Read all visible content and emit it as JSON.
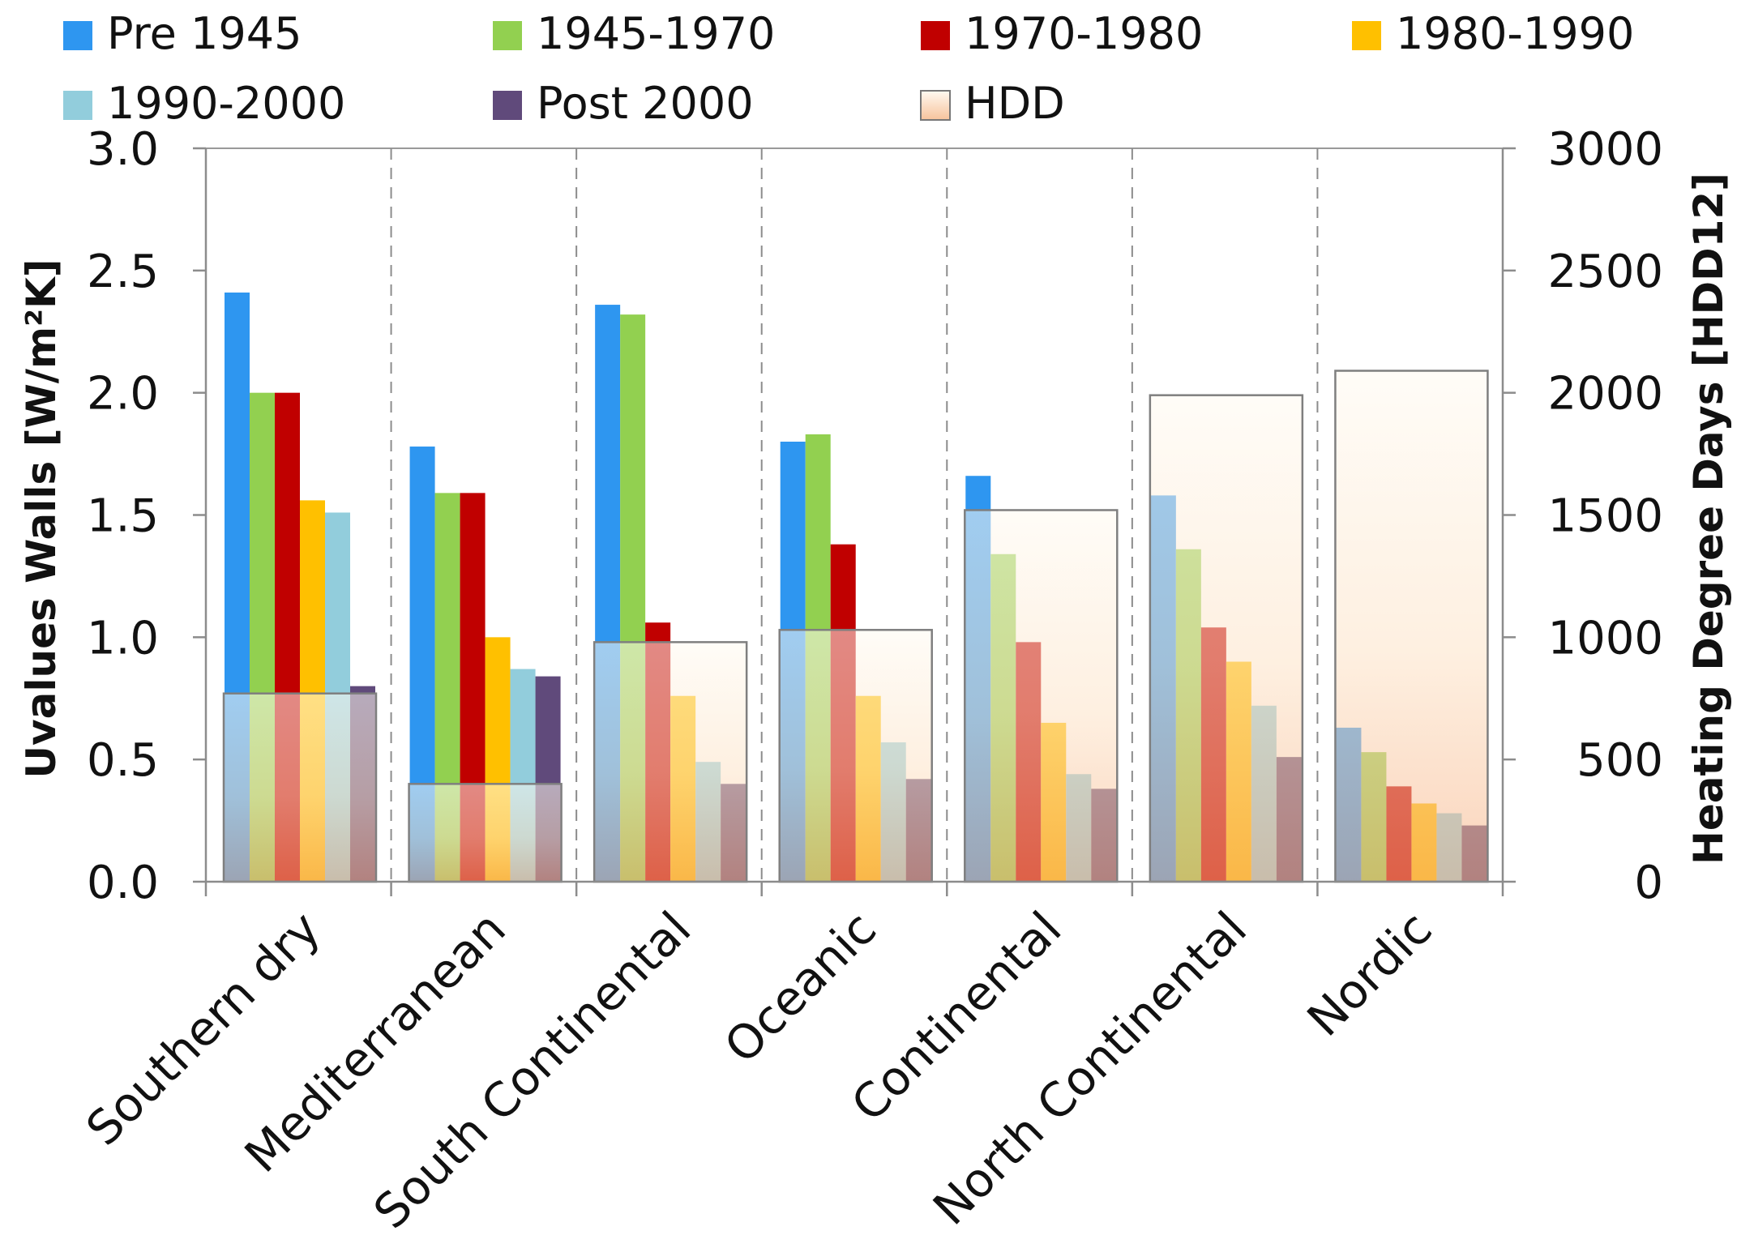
{
  "chart_data": {
    "type": "bar",
    "categories": [
      "Southern dry",
      "Mediterranean",
      "South Continental",
      "Oceanic",
      "Continental",
      "North Continental",
      "Nordic"
    ],
    "series": [
      {
        "name": "Pre 1945",
        "color": "#2e96f0",
        "values": [
          2.41,
          1.78,
          2.36,
          1.8,
          1.66,
          1.58,
          0.63
        ]
      },
      {
        "name": "1945-1970",
        "color": "#92d050",
        "values": [
          2.0,
          1.59,
          2.32,
          1.83,
          1.34,
          1.36,
          0.53
        ]
      },
      {
        "name": "1970-1980",
        "color": "#c00000",
        "values": [
          2.0,
          1.59,
          1.06,
          1.38,
          0.98,
          1.04,
          0.39
        ]
      },
      {
        "name": "1980-1990",
        "color": "#ffc000",
        "values": [
          1.56,
          1.0,
          0.76,
          0.76,
          0.65,
          0.9,
          0.32
        ]
      },
      {
        "name": "1990-2000",
        "color": "#92cddc",
        "values": [
          1.51,
          0.87,
          0.49,
          0.57,
          0.44,
          0.72,
          0.28
        ]
      },
      {
        "name": "Post 2000",
        "color": "#604a7b",
        "values": [
          0.8,
          0.84,
          0.4,
          0.42,
          0.38,
          0.51,
          0.23
        ]
      }
    ],
    "hdd": {
      "name": "HDD",
      "values": [
        770,
        400,
        980,
        1030,
        1520,
        1990,
        2090
      ]
    },
    "legend": [
      "Pre 1945",
      "1945-1970",
      "1970-1980",
      "1980-1990",
      "1990-2000",
      "Post 2000",
      "HDD"
    ],
    "ylabel": "Uvalues Walls [W/m²K]",
    "y2label": "Heating Degree Days [HDD12]",
    "ylim": [
      0,
      3.0
    ],
    "y2lim": [
      0,
      3000
    ],
    "yticks": [
      "0.0",
      "0.5",
      "1.0",
      "1.5",
      "2.0",
      "2.5",
      "3.0"
    ],
    "y2ticks": [
      "0",
      "500",
      "1000",
      "1500",
      "2000",
      "2500",
      "3000"
    ],
    "legend_position": "top",
    "grid": false
  }
}
